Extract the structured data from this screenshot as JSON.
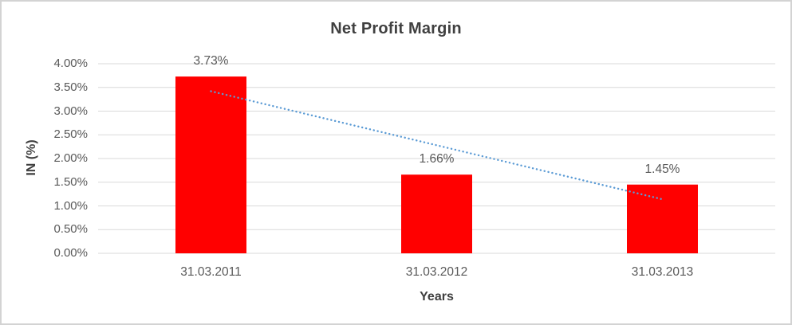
{
  "chart_data": {
    "type": "bar",
    "title": "Net Profit Margin",
    "xlabel": "Years",
    "ylabel": "IN (%)",
    "categories": [
      "31.03.2011",
      "31.03.2012",
      "31.03.2013"
    ],
    "values": [
      3.73,
      1.66,
      1.45
    ],
    "data_labels": [
      "3.73%",
      "1.66%",
      "1.45%"
    ],
    "ylim": [
      0,
      4
    ],
    "ytick_step": 0.5,
    "ytick_labels": [
      "0.00%",
      "0.50%",
      "1.00%",
      "1.50%",
      "2.00%",
      "2.50%",
      "3.00%",
      "3.50%",
      "4.00%"
    ],
    "grid": true,
    "legend": "none",
    "bar_color": "#FF0000",
    "trendline": {
      "type": "linear",
      "style": "dotted",
      "color": "#5B9BD5",
      "start_value": 3.42,
      "end_value": 1.14
    },
    "colors": {
      "title": "#404040",
      "axis_title": "#404040",
      "tick_label": "#595959",
      "data_label": "#595959",
      "gridline": "#D9D9D9",
      "background": "#FFFFFF",
      "border": "#D3D3D3"
    }
  }
}
